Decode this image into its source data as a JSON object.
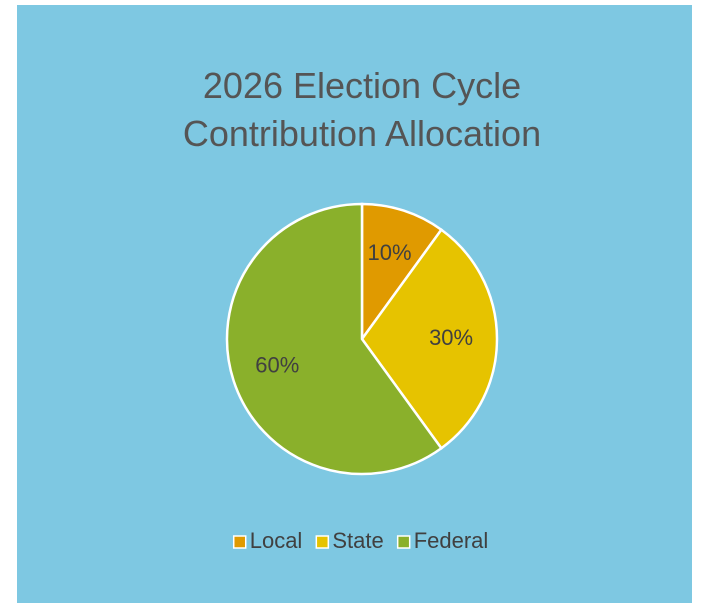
{
  "chart_data": {
    "type": "pie",
    "title": "2026 Election Cycle Contribution Allocation",
    "categories": [
      "Local",
      "State",
      "Federal"
    ],
    "values": [
      10,
      30,
      60
    ],
    "value_labels": [
      "10%",
      "30%",
      "60%"
    ],
    "colors": [
      "#e09a00",
      "#e6c300",
      "#8ab02b"
    ],
    "legend": "bottom"
  }
}
